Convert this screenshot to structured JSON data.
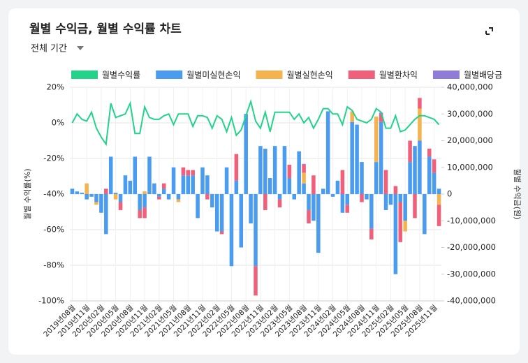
{
  "chart_data": {
    "type": "combo",
    "title": "월별 수익금, 월별 수익률 차트",
    "period": "전체 기간",
    "y_label": "월별 수익률(%)",
    "y2_label": "월별 수익금(원)",
    "grid": true,
    "legend_position": "top",
    "categories": [
      "2019년08월",
      null,
      null,
      "2019년11월",
      null,
      null,
      "2020년02월",
      null,
      null,
      "2020년05월",
      null,
      null,
      "2020년08월",
      null,
      null,
      "2020년11월",
      null,
      null,
      "2021년02월",
      null,
      null,
      "2021년05월",
      null,
      null,
      "2021년08월",
      null,
      null,
      "2021년11월",
      null,
      null,
      "2022년02월",
      null,
      null,
      "2022년05월",
      null,
      null,
      "2022년08월",
      null,
      null,
      "2022년11월",
      null,
      null,
      "2023년02월",
      null,
      null,
      "2023년05월",
      null,
      null,
      "2023년08월",
      null,
      null,
      "2023년11월",
      null,
      null,
      "2024년02월",
      null,
      null,
      "2024년05월",
      null,
      null,
      "2024년08월",
      null,
      null,
      "2024년11월",
      null,
      null,
      "2025년02월",
      null,
      null,
      "2025년05월",
      null,
      null,
      "2025년08월",
      null,
      null,
      "2025년11월",
      null
    ],
    "ylim": [
      -100,
      20
    ],
    "yticks": [
      {
        "value": -100,
        "label": "-100%"
      },
      {
        "value": -80,
        "label": "-80%"
      },
      {
        "value": -60,
        "label": "-60%"
      },
      {
        "value": -40,
        "label": "-40%"
      },
      {
        "value": -20,
        "label": "-20%"
      },
      {
        "value": 0,
        "label": "0%"
      },
      {
        "value": 20,
        "label": "20%"
      }
    ],
    "y2lim": [
      -40000000,
      40000000
    ],
    "y2ticks": [
      {
        "value": -40000000,
        "label": "-40,000,000"
      },
      {
        "value": -30000000,
        "label": "-30,000,000"
      },
      {
        "value": -20000000,
        "label": "-20,000,000"
      },
      {
        "value": -10000000,
        "label": "-10,000,000"
      },
      {
        "value": 0,
        "label": "0"
      },
      {
        "value": 10000000,
        "label": "10,000,000"
      },
      {
        "value": 20000000,
        "label": "20,000,000"
      },
      {
        "value": 30000000,
        "label": "30,000,000"
      },
      {
        "value": 40000000,
        "label": "40,000,000"
      }
    ],
    "series": [
      {
        "name": "월별수익률",
        "type": "line",
        "axis": "y",
        "color": "#22d38a",
        "values": [
          0,
          5,
          2,
          1,
          6,
          -3,
          -8,
          -12,
          11,
          3,
          4,
          5,
          11,
          -6,
          -6,
          9,
          3,
          2,
          2,
          4,
          5,
          -1,
          5,
          5,
          5,
          -2,
          4,
          4,
          3,
          -3,
          4,
          2,
          -5,
          3,
          -7,
          -4,
          4,
          12,
          1,
          -3,
          6,
          -5,
          6,
          6,
          6,
          6,
          2,
          5,
          0,
          3,
          -3,
          2,
          8,
          8,
          5,
          5,
          -1,
          9,
          7,
          2,
          1,
          0,
          2,
          8,
          6,
          -3,
          -3,
          4,
          -5,
          -4,
          -1,
          2,
          4,
          4,
          3,
          2,
          -1
        ]
      },
      {
        "name": "월별미실현손익",
        "type": "bar",
        "axis": "y2",
        "color": "#4a9cf0",
        "values": [
          2000000,
          1000000,
          500000,
          -2000000,
          -1000000,
          -3000000,
          -7000000,
          -15000000,
          14000000,
          500000,
          -3000000,
          7000000,
          5000000,
          14000000,
          -6000000,
          -5000000,
          14000000,
          4000000,
          -1000000,
          2000000,
          -2000000,
          10000000,
          -2000000,
          7000000,
          7000000,
          7000000,
          -9000000,
          10000000,
          7000000,
          -5000000,
          -14000000,
          -14000000,
          10000000,
          -27000000,
          5000000,
          -20000000,
          30000000,
          -11000000,
          -27000000,
          18000000,
          17000000,
          6000000,
          18000000,
          -2000000,
          18000000,
          6000000,
          -2000000,
          16000000,
          4000000,
          -6000000,
          -10000000,
          -22000000,
          2000000,
          31000000,
          -1000000,
          5000000,
          -7000000,
          -4000000,
          27000000,
          26000000,
          12000000,
          -2000000,
          -13000000,
          12000000,
          27000000,
          -6000000,
          -4000000,
          -30000000,
          -3000000,
          -10000000,
          12000000,
          18000000,
          20000000,
          -15000000,
          14000000,
          8000000,
          2000000
        ]
      },
      {
        "name": "월별실현손익",
        "type": "bar",
        "axis": "y2",
        "color": "#f5b350",
        "values": [
          0,
          0,
          0,
          4000000,
          0,
          -1000000,
          0,
          0,
          0,
          -2000000,
          0,
          0,
          0,
          0,
          0,
          1000000,
          0,
          0,
          0,
          0,
          0,
          0,
          -1000000,
          0,
          0,
          0,
          0,
          0,
          0,
          0,
          0,
          0,
          0,
          0,
          0,
          0,
          0,
          0,
          0,
          0,
          0,
          0,
          0,
          0,
          0,
          0,
          0,
          0,
          4000000,
          0,
          0,
          0,
          0,
          0,
          0,
          0,
          0,
          0,
          4000000,
          0,
          0,
          0,
          0,
          17000000,
          0,
          0,
          0,
          0,
          0,
          -4000000,
          0,
          0,
          12000000,
          0,
          0,
          0,
          -4000000
        ]
      },
      {
        "name": "월별환차익",
        "type": "bar",
        "axis": "y2",
        "color": "#f0607a",
        "values": [
          0,
          0,
          0,
          0,
          0,
          0,
          0,
          2000000,
          0,
          0,
          -3000000,
          0,
          0,
          0,
          -3000000,
          -4000000,
          0,
          0,
          -1000000,
          2000000,
          0,
          0,
          0,
          3000000,
          2000000,
          2000000,
          0,
          0,
          -2000000,
          0,
          0,
          -1000000,
          0,
          0,
          10000000,
          0,
          0,
          0,
          -11000000,
          0,
          -6000000,
          0,
          0,
          -3000000,
          0,
          5000000,
          0,
          0,
          3000000,
          -5000000,
          7000000,
          0,
          0,
          0,
          0,
          0,
          9000000,
          -3000000,
          0,
          0,
          -3000000,
          0,
          -4000000,
          0,
          3000000,
          9000000,
          0,
          3000000,
          -15000000,
          0,
          8000000,
          -9000000,
          4000000,
          0,
          3000000,
          5000000,
          -8000000
        ]
      },
      {
        "name": "월별배당금",
        "type": "bar",
        "axis": "y2",
        "color": "#8e7cd8",
        "values": [
          0,
          0,
          0,
          0,
          0,
          0,
          0,
          0,
          0,
          0,
          0,
          0,
          0,
          0,
          0,
          0,
          0,
          0,
          0,
          0,
          0,
          0,
          0,
          0,
          0,
          0,
          0,
          0,
          0,
          0,
          0,
          0,
          0,
          0,
          0,
          0,
          0,
          0,
          0,
          0,
          0,
          0,
          0,
          0,
          0,
          0,
          0,
          0,
          300000,
          0,
          0,
          0,
          0,
          0,
          0,
          0,
          0,
          0,
          0,
          0,
          0,
          0,
          0,
          0,
          500000,
          0,
          0,
          0,
          0,
          0,
          0,
          0,
          0,
          0,
          0,
          0,
          0
        ]
      }
    ]
  }
}
